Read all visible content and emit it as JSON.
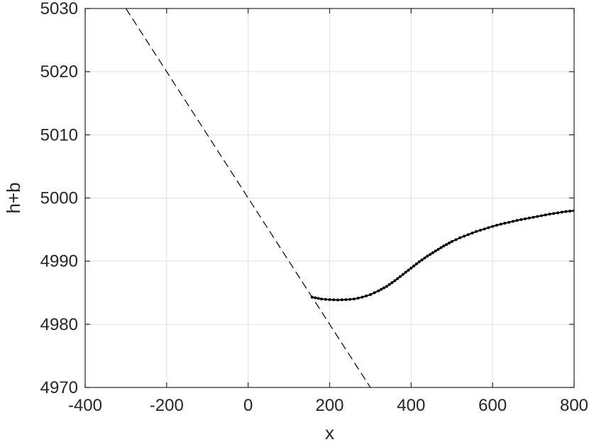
{
  "chart_data": {
    "type": "line",
    "title": "",
    "xlabel": "x",
    "ylabel": "h+b",
    "xlim": [
      -400,
      800
    ],
    "ylim": [
      4970,
      5030
    ],
    "xticks": [
      -400,
      -200,
      0,
      200,
      400,
      600,
      800
    ],
    "yticks": [
      4970,
      4980,
      4990,
      5000,
      5010,
      5020,
      5030
    ],
    "grid": true,
    "legend": "none",
    "colors": {
      "axis": "#262626",
      "grid": "#e0e0e0",
      "series": "#000000"
    },
    "series": [
      {
        "style": "dashed",
        "x": [
          -300,
          300
        ],
        "y": [
          5030,
          4970
        ]
      },
      {
        "style": "solid-dotted-markers",
        "x": [
          157,
          180,
          200,
          220,
          240,
          260,
          280,
          300,
          320,
          340,
          360,
          380,
          400,
          420,
          440,
          460,
          480,
          500,
          520,
          540,
          560,
          580,
          600,
          620,
          640,
          660,
          680,
          700,
          720,
          740,
          760,
          780,
          800
        ],
        "y": [
          4984.3,
          4984.0,
          4983.9,
          4983.85,
          4983.9,
          4984.0,
          4984.3,
          4984.7,
          4985.3,
          4986.0,
          4986.9,
          4987.9,
          4988.9,
          4989.9,
          4990.8,
          4991.6,
          4992.4,
          4993.1,
          4993.7,
          4994.2,
          4994.7,
          4995.1,
          4995.5,
          4995.85,
          4996.15,
          4996.45,
          4996.7,
          4996.95,
          4997.2,
          4997.45,
          4997.65,
          4997.85,
          4998.0
        ]
      }
    ]
  }
}
